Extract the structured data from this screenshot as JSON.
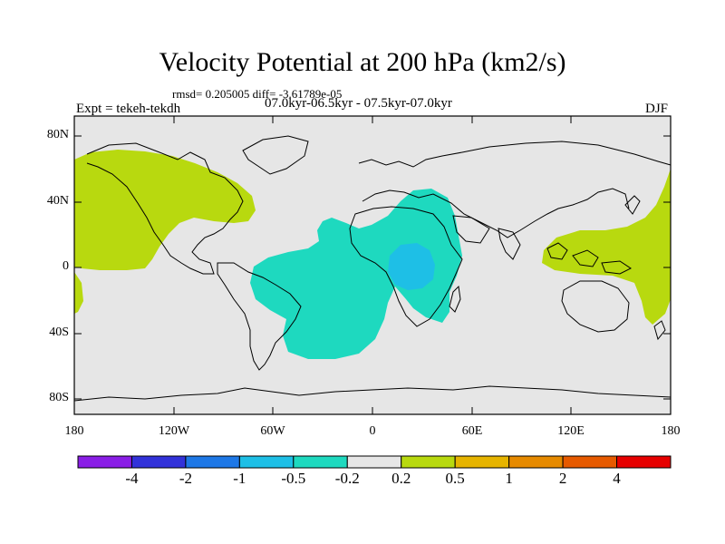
{
  "title": "Velocity Potential at 200 hPa (km2/s)",
  "stats_line": "rmsd= 0.205005 diff= -3.61789e-05",
  "experiment_label": "Expt = tekeh-tekdh",
  "periods_label": "07.0kyr-06.5kyr - 07.5kyr-07.0kyr",
  "season_label": "DJF",
  "lat_labels": [
    "80N",
    "40N",
    "0",
    "40S",
    "80S"
  ],
  "lon_labels": [
    "180",
    "120W",
    "60W",
    "0",
    "60E",
    "120E",
    "180"
  ],
  "colorbar": {
    "colors": [
      "#8a1ee6",
      "#3232d9",
      "#1e78e6",
      "#1ebfe6",
      "#1ed9bf",
      "#e6e6e6",
      "#b8d90f",
      "#e6b400",
      "#e68a00",
      "#e65a00",
      "#e60000"
    ],
    "tick_labels": [
      "-4",
      "-2",
      "-1",
      "-0.5",
      "-0.2",
      "0.2",
      "0.5",
      "1",
      "2",
      "4"
    ]
  },
  "colors": {
    "background": "#e6e6e6",
    "negative_moderate": "#1ed9bf",
    "negative_strong": "#1ebfe6",
    "positive_moderate": "#b8d90f"
  }
}
